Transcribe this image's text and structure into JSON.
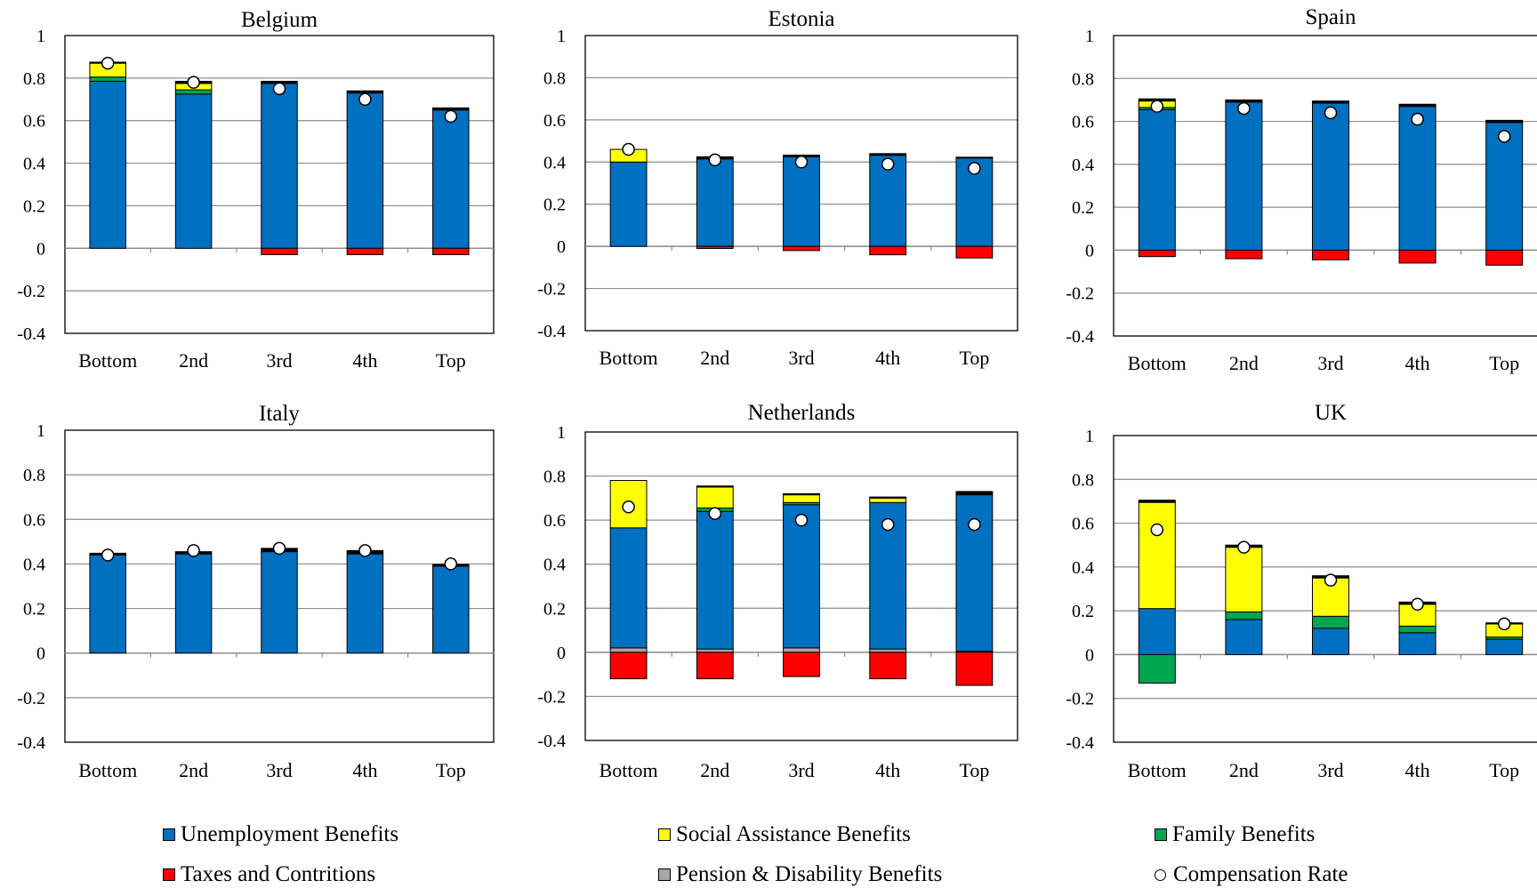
{
  "legend": {
    "items": [
      {
        "key": "unemp",
        "label": "Unemployment Benefits",
        "color": "#0070C0",
        "kind": "square"
      },
      {
        "key": "social",
        "label": "Social Assistance Benefits",
        "color": "#FFFF00",
        "kind": "square"
      },
      {
        "key": "family",
        "label": "Family Benefits",
        "color": "#00A550",
        "kind": "square"
      },
      {
        "key": "taxes",
        "label": "Taxes and Contritions",
        "color": "#FF0000",
        "kind": "square"
      },
      {
        "key": "pension",
        "label": "Pension & Disability Benefits",
        "color": "#A6A6A6",
        "kind": "square"
      },
      {
        "key": "comp",
        "label": "Compensation Rate",
        "color": "#FFFFFF",
        "kind": "circle"
      }
    ]
  },
  "chart_data": [
    {
      "type": "bar",
      "title": "Belgium",
      "categories": [
        "Bottom",
        "2nd",
        "3rd",
        "4th",
        "Top"
      ],
      "ylim": [
        -0.4,
        1
      ],
      "yticks": [
        "1",
        "0.8",
        "0.6",
        "0.4",
        "0.2",
        "0",
        "-0.2",
        "-0.4"
      ],
      "grid": true,
      "series": [
        {
          "name": "Pension & Disability Benefits",
          "values": [
            0,
            0,
            0,
            0,
            0
          ]
        },
        {
          "name": "Unemployment Benefits",
          "values": [
            0.785,
            0.725,
            0.775,
            0.73,
            0.65
          ]
        },
        {
          "name": "Family Benefits",
          "values": [
            0.02,
            0.02,
            0,
            0,
            0
          ]
        },
        {
          "name": "Social Assistance Benefits",
          "values": [
            0.065,
            0.03,
            0,
            0,
            0
          ]
        },
        {
          "name": "Other",
          "values": [
            0.005,
            0.01,
            0.01,
            0.01,
            0.01
          ]
        },
        {
          "name": "Taxes and Contritions",
          "values": [
            0,
            0,
            -0.03,
            -0.03,
            -0.03
          ]
        },
        {
          "name": "Compensation Rate",
          "values": [
            0.87,
            0.78,
            0.75,
            0.7,
            0.62
          ]
        }
      ]
    },
    {
      "type": "bar",
      "title": "Estonia",
      "categories": [
        "Bottom",
        "2nd",
        "3rd",
        "4th",
        "Top"
      ],
      "ylim": [
        -0.4,
        1
      ],
      "yticks": [
        "1",
        "0.8",
        "0.6",
        "0.4",
        "0.2",
        "0",
        "-0.2",
        "-0.4"
      ],
      "grid": true,
      "series": [
        {
          "name": "Pension & Disability Benefits",
          "values": [
            0,
            0,
            0,
            0,
            0
          ]
        },
        {
          "name": "Unemployment Benefits",
          "values": [
            0.4,
            0.415,
            0.425,
            0.432,
            0.42
          ]
        },
        {
          "name": "Family Benefits",
          "values": [
            0,
            0,
            0,
            0,
            0
          ]
        },
        {
          "name": "Social Assistance Benefits",
          "values": [
            0.06,
            0,
            0,
            0,
            0
          ]
        },
        {
          "name": "Other",
          "values": [
            0,
            0.01,
            0.008,
            0.008,
            0.003
          ]
        },
        {
          "name": "Taxes and Contritions",
          "values": [
            0,
            -0.01,
            -0.02,
            -0.04,
            -0.055
          ]
        },
        {
          "name": "Compensation Rate",
          "values": [
            0.46,
            0.41,
            0.4,
            0.39,
            0.37
          ]
        }
      ]
    },
    {
      "type": "bar",
      "title": "Spain",
      "categories": [
        "Bottom",
        "2nd",
        "3rd",
        "4th",
        "Top"
      ],
      "ylim": [
        -0.4,
        1
      ],
      "yticks": [
        "1",
        "0.8",
        "0.6",
        "0.4",
        "0.2",
        "0",
        "-0.2",
        "-0.4"
      ],
      "grid": true,
      "series": [
        {
          "name": "Pension & Disability Benefits",
          "values": [
            0,
            0,
            0,
            0,
            0
          ]
        },
        {
          "name": "Unemployment Benefits",
          "values": [
            0.655,
            0.69,
            0.685,
            0.67,
            0.595
          ]
        },
        {
          "name": "Family Benefits",
          "values": [
            0.01,
            0,
            0,
            0,
            0
          ]
        },
        {
          "name": "Social Assistance Benefits",
          "values": [
            0.03,
            0,
            0,
            0,
            0
          ]
        },
        {
          "name": "Other",
          "values": [
            0.01,
            0.01,
            0.01,
            0.01,
            0.01
          ]
        },
        {
          "name": "Taxes and Contritions",
          "values": [
            -0.03,
            -0.04,
            -0.045,
            -0.06,
            -0.07
          ]
        },
        {
          "name": "Compensation Rate",
          "values": [
            0.67,
            0.66,
            0.64,
            0.61,
            0.53
          ]
        }
      ]
    },
    {
      "type": "bar",
      "title": "Italy",
      "categories": [
        "Bottom",
        "2nd",
        "3rd",
        "4th",
        "Top"
      ],
      "ylim": [
        -0.4,
        1
      ],
      "yticks": [
        "1",
        "0.8",
        "0.6",
        "0.4",
        "0.2",
        "0",
        "-0.2",
        "-0.4"
      ],
      "grid": true,
      "series": [
        {
          "name": "Pension & Disability Benefits",
          "values": [
            0,
            0,
            0,
            0,
            0
          ]
        },
        {
          "name": "Unemployment Benefits",
          "values": [
            0.44,
            0.445,
            0.455,
            0.445,
            0.39
          ]
        },
        {
          "name": "Family Benefits",
          "values": [
            0,
            0,
            0,
            0,
            0
          ]
        },
        {
          "name": "Social Assistance Benefits",
          "values": [
            0,
            0,
            0,
            0,
            0
          ]
        },
        {
          "name": "Other",
          "values": [
            0.008,
            0.01,
            0.015,
            0.015,
            0.008
          ]
        },
        {
          "name": "Taxes and Contritions",
          "values": [
            0,
            0,
            0,
            0,
            0
          ]
        },
        {
          "name": "Compensation Rate",
          "values": [
            0.44,
            0.46,
            0.47,
            0.46,
            0.4
          ]
        }
      ]
    },
    {
      "type": "bar",
      "title": "Netherlands",
      "categories": [
        "Bottom",
        "2nd",
        "3rd",
        "4th",
        "Top"
      ],
      "ylim": [
        -0.4,
        1
      ],
      "yticks": [
        "1",
        "0.8",
        "0.6",
        "0.4",
        "0.2",
        "0",
        "-0.2",
        "-0.4"
      ],
      "grid": true,
      "series": [
        {
          "name": "Pension & Disability Benefits",
          "values": [
            0.02,
            0.015,
            0.02,
            0.015,
            0.005
          ]
        },
        {
          "name": "Unemployment Benefits",
          "values": [
            0.545,
            0.625,
            0.65,
            0.665,
            0.71
          ]
        },
        {
          "name": "Family Benefits",
          "values": [
            0,
            0.015,
            0.01,
            0,
            0
          ]
        },
        {
          "name": "Social Assistance Benefits",
          "values": [
            0.215,
            0.095,
            0.035,
            0.02,
            0
          ]
        },
        {
          "name": "Other",
          "values": [
            0,
            0.005,
            0.005,
            0.005,
            0.015
          ]
        },
        {
          "name": "Taxes and Contritions",
          "values": [
            -0.12,
            -0.12,
            -0.11,
            -0.12,
            -0.15
          ]
        },
        {
          "name": "Compensation Rate",
          "values": [
            0.66,
            0.63,
            0.6,
            0.58,
            0.58
          ]
        }
      ]
    },
    {
      "type": "bar",
      "title": "UK",
      "categories": [
        "Bottom",
        "2nd",
        "3rd",
        "4th",
        "Top"
      ],
      "ylim": [
        -0.4,
        1
      ],
      "yticks": [
        "1",
        "0.8",
        "0.6",
        "0.4",
        "0.2",
        "0",
        "-0.2",
        "-0.4"
      ],
      "grid": true,
      "series": [
        {
          "name": "Pension & Disability Benefits",
          "values": [
            0,
            0,
            0,
            0,
            0
          ]
        },
        {
          "name": "Unemployment Benefits",
          "values": [
            0.21,
            0.16,
            0.12,
            0.1,
            0.07
          ]
        },
        {
          "name": "Family Benefits",
          "values": [
            -0.13,
            0.035,
            0.055,
            0.03,
            0.01
          ]
        },
        {
          "name": "Social Assistance Benefits",
          "values": [
            0.485,
            0.295,
            0.175,
            0.1,
            0.06
          ]
        },
        {
          "name": "Other",
          "values": [
            0.01,
            0.01,
            0.01,
            0.01,
            0.005
          ]
        },
        {
          "name": "Taxes and Contritions",
          "values": [
            0,
            0,
            0,
            0,
            0
          ]
        },
        {
          "name": "Compensation Rate",
          "values": [
            0.57,
            0.49,
            0.34,
            0.23,
            0.14
          ]
        }
      ]
    }
  ]
}
